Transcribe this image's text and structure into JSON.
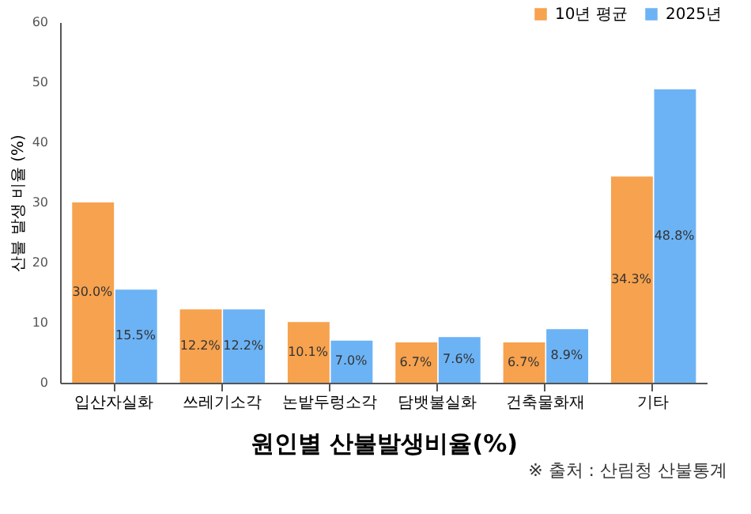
{
  "chart_data": {
    "type": "bar",
    "xlabel": "원인별 산불발생비율(%)",
    "ylabel": "산불 발생 비율 (%)",
    "categories": [
      "입산자실화",
      "쓰레기소각",
      "논밭두렁소각",
      "담뱃불실화",
      "건축물화재",
      "기타"
    ],
    "series": [
      {
        "name": "10년 평균",
        "color": "#f7a24e",
        "values": [
          30.0,
          12.2,
          10.1,
          6.7,
          6.7,
          34.3
        ],
        "value_labels": [
          "30.0%",
          "12.2%",
          "10.1%",
          "6.7%",
          "6.7%",
          "34.3%"
        ]
      },
      {
        "name": "2025년",
        "color": "#6cb3f5",
        "values": [
          15.5,
          12.2,
          7.0,
          7.6,
          8.9,
          48.8
        ],
        "value_labels": [
          "15.5%",
          "12.2%",
          "7.0%",
          "7.6%",
          "8.9%",
          "48.8%"
        ]
      }
    ],
    "ylim": [
      0,
      60
    ],
    "yticks": [
      0,
      10,
      20,
      30,
      40,
      50,
      60
    ],
    "grid": false,
    "legend": "top right",
    "annotations": [
      "※ 출처 : 산림청 산불통계"
    ]
  }
}
